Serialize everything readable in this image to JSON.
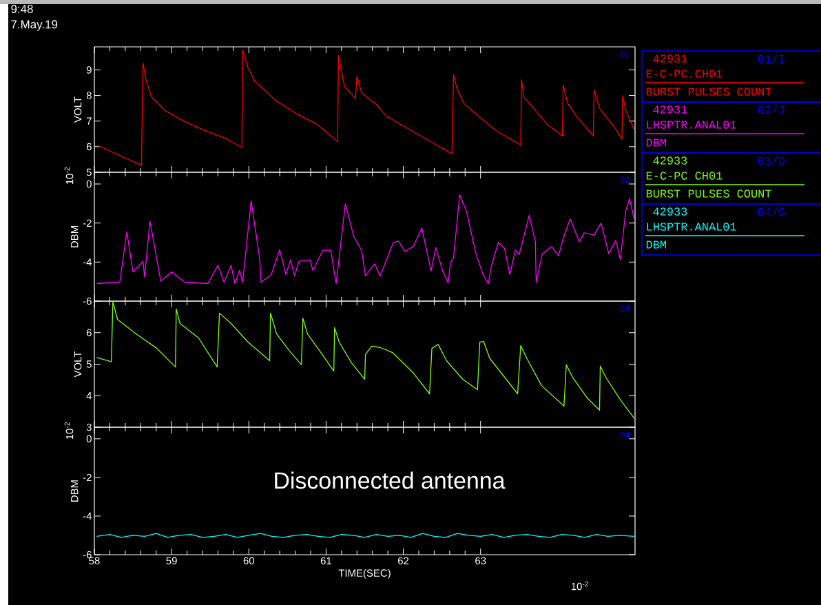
{
  "chart_data": [
    {
      "type": "line",
      "title": "9:48",
      "subtitle": "7.May.19",
      "ylabel": "VOLT",
      "xlim": [
        58,
        65
      ],
      "xticks": [
        58,
        59,
        60,
        61,
        62,
        63
      ],
      "ylim": [
        5,
        9.9
      ],
      "yticks": [
        5,
        6,
        7,
        8,
        9
      ],
      "tick_labels": "y",
      "legend": "right",
      "legend_title": "42931",
      "series": [
        {
          "name": "E-C-PC.CH01",
          "color": "#ff0000",
          "x": [
            58.04,
            58.3,
            58.61,
            58.63,
            58.67,
            58.74,
            58.92,
            59.19,
            59.46,
            59.72,
            59.91,
            59.92,
            59.99,
            60.08,
            60.35,
            60.62,
            60.88,
            61.15,
            61.16,
            61.24,
            61.38,
            61.4,
            61.46,
            61.64,
            61.78,
            62.07,
            62.38,
            62.63,
            62.65,
            62.7,
            62.79,
            62.96,
            63.21,
            63.52,
            63.53,
            63.56,
            63.71,
            63.86,
            64.06,
            64.07,
            64.13,
            64.25,
            64.46,
            64.47,
            64.54,
            64.75,
            64.83,
            64.84,
            64.88,
            64.99
          ],
          "values": [
            6.05,
            5.7,
            5.27,
            9.27,
            8.6,
            7.95,
            7.4,
            6.95,
            6.6,
            6.3,
            5.97,
            9.78,
            9.08,
            8.55,
            7.8,
            7.28,
            6.88,
            6.2,
            9.56,
            8.35,
            7.87,
            8.76,
            8.1,
            7.68,
            7.2,
            6.69,
            6.15,
            5.73,
            8.81,
            8.22,
            7.68,
            7.23,
            6.61,
            6.07,
            8.62,
            7.95,
            7.42,
            6.88,
            6.42,
            8.41,
            7.68,
            7.15,
            6.42,
            8.22,
            7.5,
            6.69,
            6.29,
            8.0,
            7.42,
            6.66
          ]
        }
      ],
      "annotations": [
        "01",
        "01/I",
        "BURST PULSES COUNT"
      ]
    },
    {
      "type": "line",
      "ylabel": "DBM",
      "xlim": [
        58,
        65
      ],
      "xticks": [
        58,
        59,
        60,
        61,
        62,
        63
      ],
      "ylim": [
        -6,
        0.6
      ],
      "yticks": [
        -6,
        -4,
        -2,
        0
      ],
      "tick_labels": "y",
      "legend": "right",
      "legend_title": "42931",
      "series": [
        {
          "name": "LHSPTR.ANAL01",
          "color": "#ff00ff",
          "x": [
            58.03,
            58.33,
            58.42,
            58.5,
            58.63,
            58.65,
            58.72,
            58.86,
            59.0,
            59.17,
            59.47,
            59.6,
            59.68,
            59.77,
            59.82,
            59.88,
            59.92,
            60.03,
            60.14,
            60.16,
            60.29,
            60.4,
            60.48,
            60.54,
            60.59,
            60.65,
            60.79,
            60.83,
            60.96,
            61.06,
            61.13,
            61.25,
            61.36,
            61.46,
            61.51,
            61.63,
            61.7,
            61.87,
            61.94,
            62.02,
            62.13,
            62.24,
            62.36,
            62.42,
            62.51,
            62.58,
            62.61,
            62.65,
            62.73,
            62.82,
            62.94,
            63.03,
            63.1,
            63.14,
            63.23,
            63.31,
            63.38,
            63.45,
            63.5,
            63.63,
            63.71,
            63.72,
            63.8,
            63.92,
            64.01,
            64.07,
            64.16,
            64.28,
            64.34,
            64.47,
            64.56,
            64.66,
            64.75,
            64.81,
            64.88,
            64.93,
            64.99
          ],
          "values": [
            -5.1,
            -5.02,
            -2.45,
            -4.5,
            -3.96,
            -4.77,
            -1.9,
            -4.98,
            -4.5,
            -5.03,
            -5.1,
            -4.16,
            -5.04,
            -4.16,
            -5.1,
            -4.43,
            -5.03,
            -0.86,
            -3.82,
            -5.04,
            -4.64,
            -3.38,
            -4.64,
            -3.89,
            -4.71,
            -3.96,
            -3.89,
            -4.43,
            -3.39,
            -3.39,
            -5.1,
            -1.02,
            -2.71,
            -3.39,
            -4.71,
            -4.09,
            -4.71,
            -3.0,
            -2.93,
            -3.46,
            -3.2,
            -2.25,
            -4.46,
            -3.25,
            -4.46,
            -5.07,
            -4.04,
            -3.79,
            -0.55,
            -1.43,
            -3.57,
            -4.61,
            -5.11,
            -4.21,
            -3.0,
            -3.29,
            -4.64,
            -3.39,
            -3.61,
            -1.61,
            -2.96,
            -5.04,
            -3.57,
            -3.2,
            -3.68,
            -2.79,
            -1.79,
            -2.96,
            -2.5,
            -2.61,
            -2.0,
            -3.57,
            -2.89,
            -3.86,
            -1.36,
            -0.75,
            -1.82
          ]
        }
      ],
      "annotations": [
        "02",
        "02/J",
        "DBM",
        "10$^{-2}$"
      ]
    },
    {
      "type": "line",
      "ylabel": "VOLT",
      "xlim": [
        58,
        65
      ],
      "xticks": [
        58,
        59,
        60,
        61,
        62,
        63
      ],
      "ylim": [
        3,
        7
      ],
      "yticks": [
        3,
        4,
        5,
        6
      ],
      "tick_labels": "y",
      "legend": "right",
      "legend_title": "42933",
      "series": [
        {
          "name": "E-C-PC CH01",
          "color": "#80ff00",
          "x": [
            58.03,
            58.22,
            58.24,
            58.3,
            58.54,
            58.81,
            59.05,
            59.06,
            59.11,
            59.35,
            59.59,
            59.62,
            59.77,
            59.99,
            60.27,
            60.28,
            60.36,
            60.52,
            60.68,
            60.7,
            60.76,
            60.95,
            61.1,
            61.11,
            61.17,
            61.33,
            61.5,
            61.51,
            61.59,
            61.7,
            61.86,
            62.13,
            62.34,
            62.37,
            62.45,
            62.56,
            62.77,
            62.96,
            62.99,
            63.04,
            63.12,
            63.31,
            63.48,
            63.52,
            63.6,
            63.79,
            64.08,
            64.11,
            64.19,
            64.38,
            64.54,
            64.55,
            64.62,
            64.81,
            64.99
          ],
          "values": [
            5.21,
            5.08,
            6.98,
            6.42,
            5.96,
            5.5,
            4.91,
            6.75,
            6.29,
            5.83,
            4.91,
            6.62,
            6.29,
            5.7,
            5.11,
            6.62,
            5.96,
            5.44,
            4.98,
            6.46,
            5.96,
            5.31,
            4.78,
            6.16,
            5.7,
            5.04,
            4.52,
            5.31,
            5.57,
            5.53,
            5.37,
            4.72,
            4.06,
            5.5,
            5.63,
            5.11,
            4.52,
            4.19,
            5.7,
            5.72,
            5.18,
            4.59,
            4.06,
            5.59,
            5.18,
            4.32,
            3.67,
            4.98,
            4.59,
            3.93,
            3.54,
            4.94,
            4.59,
            3.87,
            3.28
          ]
        }
      ],
      "annotations": [
        "03",
        "03/D",
        "BURST PULSES COUNT"
      ]
    },
    {
      "type": "line",
      "ylabel": "DBM",
      "xlabel": "TIME(SEC)",
      "xlim": [
        58,
        65
      ],
      "xticks": [
        58,
        59,
        60,
        61,
        62,
        63
      ],
      "ylim": [
        -6,
        0.6
      ],
      "yticks": [
        -6,
        -4,
        -2,
        0
      ],
      "legend": "right",
      "legend_title": "42933",
      "series": [
        {
          "name": "LHSPTR.ANAL01",
          "color": "#00ffff",
          "x": [
            58.03,
            58.2,
            58.35,
            58.5,
            58.65,
            58.8,
            58.95,
            59.1,
            59.25,
            59.4,
            59.55,
            59.7,
            59.85,
            60.0,
            60.15,
            60.3,
            60.45,
            60.6,
            60.75,
            60.9,
            61.05,
            61.2,
            61.35,
            61.5,
            61.65,
            61.8,
            61.95,
            62.1,
            62.25,
            62.4,
            62.55,
            62.7,
            62.85,
            63.0,
            63.15,
            63.3,
            63.45,
            63.6,
            63.75,
            63.9,
            64.05,
            64.2,
            64.35,
            64.5,
            64.65,
            64.8,
            64.99
          ],
          "values": [
            -5.05,
            -4.95,
            -5.1,
            -5.0,
            -5.05,
            -4.9,
            -5.1,
            -5.0,
            -4.95,
            -5.1,
            -5.05,
            -4.95,
            -5.1,
            -5.0,
            -4.9,
            -5.05,
            -5.1,
            -5.0,
            -4.95,
            -5.05,
            -5.1,
            -4.95,
            -5.0,
            -5.1,
            -4.95,
            -5.05,
            -5.0,
            -5.1,
            -4.9,
            -5.05,
            -5.1,
            -4.9,
            -5.0,
            -5.05,
            -4.95,
            -5.1,
            -5.0,
            -4.95,
            -5.05,
            -5.1,
            -4.95,
            -5.0,
            -5.1,
            -4.95,
            -5.05,
            -5.0,
            -5.05
          ]
        }
      ],
      "annotations": [
        "04",
        "04/G",
        "DBM",
        "10$^{-2}$",
        "10$^{-2}$",
        "Disconnected antenna"
      ]
    }
  ]
}
